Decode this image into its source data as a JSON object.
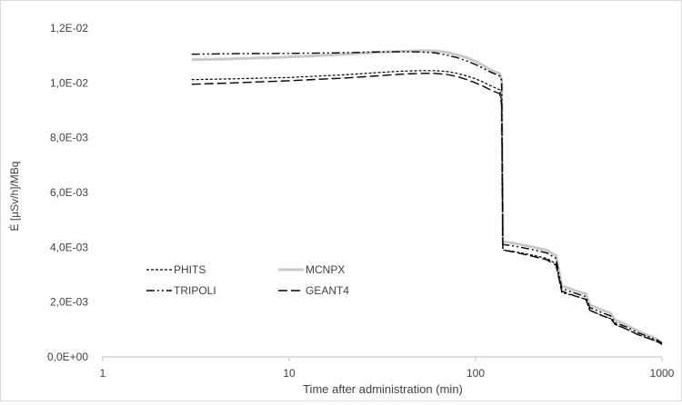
{
  "chart_data": {
    "type": "line",
    "title": "",
    "xlabel": "Time after administration (min)",
    "ylabel": "Ė [µSv/h]/MBq",
    "x_scale": "log",
    "xlim": [
      1,
      1000
    ],
    "ylim": [
      0,
      0.012
    ],
    "grid": false,
    "legend_placement": "bottom-left",
    "x_ticks": [
      1,
      10,
      100,
      1000
    ],
    "x_tick_labels": [
      "1",
      "10",
      "100",
      "1000"
    ],
    "y_ticks": [
      0,
      0.002,
      0.004,
      0.006,
      0.008,
      0.01,
      0.012
    ],
    "y_tick_labels": [
      "0,0E+00",
      "2,0E-03",
      "4,0E-03",
      "6,0E-03",
      "8,0E-03",
      "1,0E-02",
      "1,2E-02"
    ],
    "series": [
      {
        "name": "PHITS",
        "color": "#000000",
        "style": "dotted",
        "x": [
          3,
          5,
          10,
          20,
          30,
          40,
          50,
          60,
          70,
          80,
          90,
          100,
          110,
          120,
          135,
          138,
          140,
          160,
          200,
          240,
          270,
          290,
          350,
          390,
          410,
          480,
          530,
          560,
          650,
          750,
          850,
          950,
          1000
        ],
        "y": [
          0.01012,
          0.01015,
          0.0102,
          0.0103,
          0.01038,
          0.01043,
          0.01045,
          0.01045,
          0.01042,
          0.01035,
          0.01025,
          0.01015,
          0.01003,
          0.0099,
          0.00975,
          0.0093,
          0.0039,
          0.00385,
          0.00372,
          0.0036,
          0.0034,
          0.00235,
          0.0022,
          0.0021,
          0.0017,
          0.0015,
          0.0014,
          0.00118,
          0.001,
          0.0008,
          0.00068,
          0.00055,
          0.00045
        ]
      },
      {
        "name": "MCNPX",
        "color": "#c8c8c8",
        "style": "solid",
        "x": [
          3,
          5,
          10,
          20,
          30,
          40,
          50,
          60,
          70,
          80,
          90,
          100,
          110,
          120,
          135,
          138,
          140,
          160,
          200,
          240,
          270,
          290,
          350,
          390,
          410,
          480,
          530,
          560,
          650,
          750,
          850,
          950,
          1000
        ],
        "y": [
          0.01085,
          0.01088,
          0.01095,
          0.01105,
          0.01112,
          0.01115,
          0.01118,
          0.01117,
          0.01112,
          0.01102,
          0.01092,
          0.01078,
          0.01063,
          0.01048,
          0.01033,
          0.0101,
          0.0042,
          0.00415,
          0.00402,
          0.0039,
          0.0037,
          0.0026,
          0.0024,
          0.0023,
          0.0019,
          0.0017,
          0.0016,
          0.00135,
          0.00115,
          0.00093,
          0.00078,
          0.00063,
          0.00052
        ]
      },
      {
        "name": "TRIPOLI",
        "color": "#000000",
        "style": "dashdot",
        "x": [
          3,
          5,
          10,
          20,
          30,
          40,
          50,
          60,
          70,
          80,
          90,
          100,
          110,
          120,
          135,
          138,
          140,
          160,
          200,
          240,
          270,
          290,
          350,
          390,
          410,
          480,
          530,
          560,
          650,
          750,
          850,
          950,
          1000
        ],
        "y": [
          0.01105,
          0.01107,
          0.01108,
          0.0111,
          0.01113,
          0.01114,
          0.01113,
          0.0111,
          0.01102,
          0.01092,
          0.0108,
          0.01067,
          0.01053,
          0.0104,
          0.01025,
          0.0101,
          0.0041,
          0.00405,
          0.00392,
          0.0038,
          0.0036,
          0.0025,
          0.0023,
          0.0022,
          0.0018,
          0.0016,
          0.0015,
          0.00125,
          0.00108,
          0.00087,
          0.00073,
          0.0006,
          0.0005
        ]
      },
      {
        "name": "GEANT4",
        "color": "#000000",
        "style": "longdash",
        "x": [
          3,
          5,
          10,
          20,
          30,
          40,
          50,
          60,
          70,
          80,
          90,
          100,
          110,
          120,
          135,
          138,
          140,
          160,
          200,
          240,
          270,
          290,
          350,
          390,
          410,
          480,
          530,
          560,
          650,
          750,
          850,
          950,
          1000
        ],
        "y": [
          0.00995,
          0.01,
          0.01008,
          0.01018,
          0.01026,
          0.01032,
          0.01035,
          0.01035,
          0.01031,
          0.01023,
          0.01012,
          0.01,
          0.00988,
          0.00975,
          0.0096,
          0.0092,
          0.0039,
          0.00383,
          0.00368,
          0.00355,
          0.00335,
          0.0024,
          0.0022,
          0.0021,
          0.0017,
          0.0015,
          0.0014,
          0.0012,
          0.001,
          0.0008,
          0.00067,
          0.00055,
          0.00046
        ]
      }
    ]
  }
}
